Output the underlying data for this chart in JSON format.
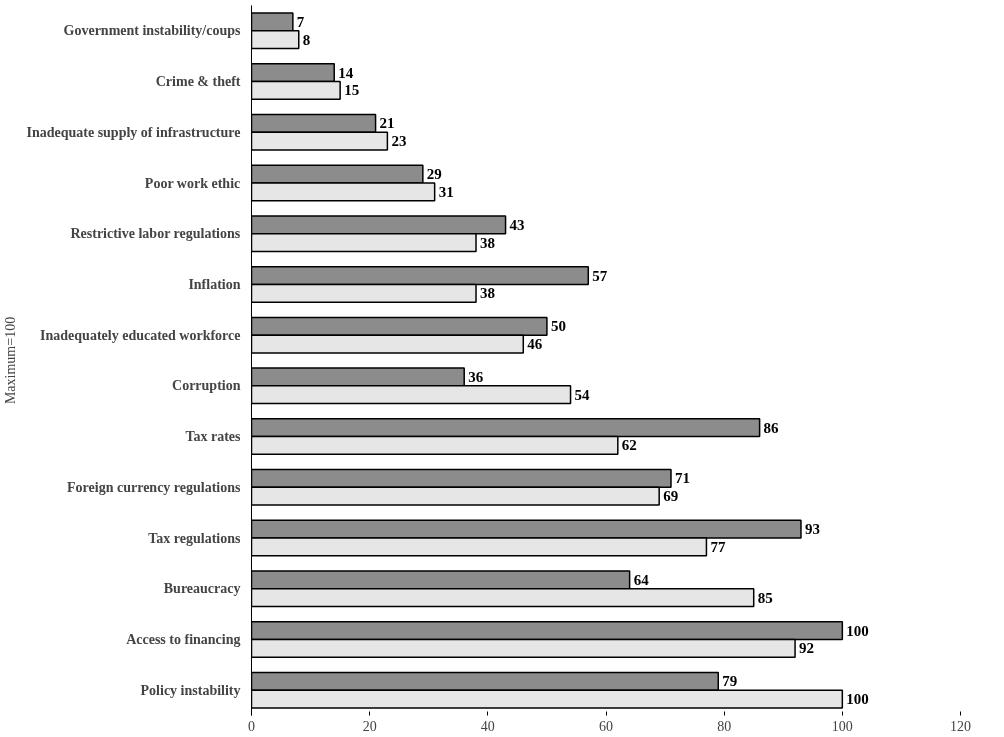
{
  "chart_data": {
    "type": "bar",
    "orientation": "horizontal",
    "ylabel": "Maximum=100",
    "categories": [
      "Government instability/coups",
      "Crime & theft",
      "Inadequate supply of infrastructure",
      "Poor work ethic",
      "Restrictive labor regulations",
      "Inflation",
      "Inadequately educated workforce",
      "Corruption",
      "Tax rates",
      "Foreign currency regulations",
      "Tax regulations",
      "Bureaucracy",
      "Access to financing",
      "Policy instability"
    ],
    "series": [
      {
        "color": "#8c8c8c",
        "values": [
          7,
          14,
          21,
          29,
          43,
          57,
          50,
          36,
          86,
          71,
          93,
          64,
          100,
          79
        ]
      },
      {
        "color": "#e6e6e6",
        "values": [
          8,
          15,
          23,
          31,
          38,
          38,
          46,
          54,
          62,
          69,
          77,
          85,
          92,
          100
        ]
      }
    ],
    "xlim": [
      0,
      120
    ],
    "xticks": [
      0,
      20,
      40,
      60,
      80,
      100,
      120
    ],
    "data_labels": true
  }
}
